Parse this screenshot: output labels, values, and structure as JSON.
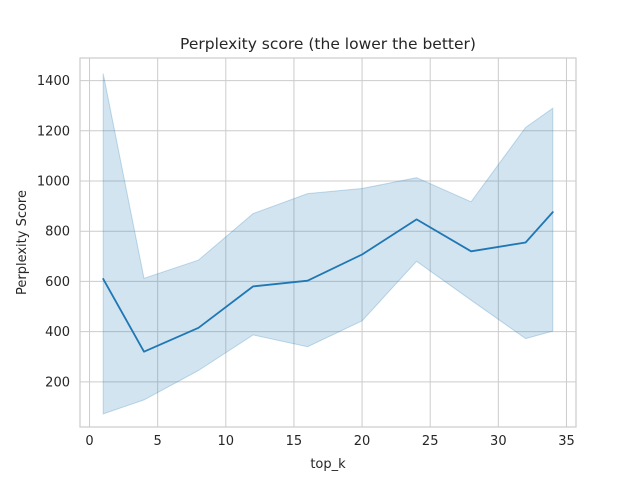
{
  "chart_data": {
    "type": "line",
    "title": "Perplexity score (the lower the better)",
    "xlabel": "top_k",
    "ylabel": "Perplexity Score",
    "xlim": [
      -0.7,
      35.7
    ],
    "ylim": [
      20,
      1490
    ],
    "x_ticks": [
      0,
      5,
      10,
      15,
      20,
      25,
      30,
      35
    ],
    "y_ticks": [
      200,
      400,
      600,
      800,
      1000,
      1200,
      1400
    ],
    "grid": true,
    "colors": {
      "line": "#1f77b4",
      "band": "#1f77b4"
    },
    "series": [
      {
        "x": [
          1,
          4,
          8,
          12,
          16,
          20,
          24,
          28,
          32,
          34
        ],
        "values": [
          610,
          320,
          415,
          580,
          603,
          707,
          847,
          720,
          755,
          876
        ],
        "lower": [
          72,
          128,
          245,
          387,
          340,
          443,
          680,
          525,
          372,
          402
        ],
        "upper": [
          1428,
          612,
          685,
          870,
          950,
          970,
          1013,
          917,
          1213,
          1290
        ]
      }
    ]
  }
}
